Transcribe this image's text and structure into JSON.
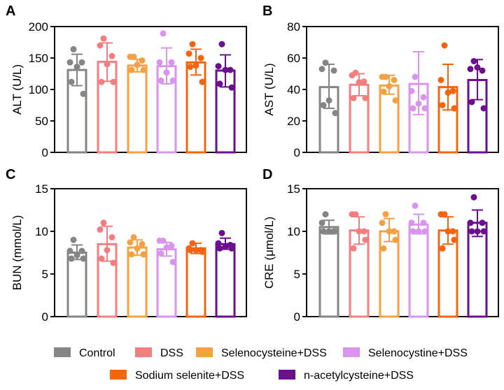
{
  "groups": [
    "Control",
    "DSS",
    "Selenocysteine+DSS",
    "Selenocystine+DSS",
    "Sodium selenite+DSS",
    "n-acetylcysteine+DSS"
  ],
  "colors": [
    "#858585",
    "#f27f7f",
    "#f5a043",
    "#d994ee",
    "#f56411",
    "#6c0f8f"
  ],
  "chart_data": [
    {
      "panel": "A",
      "type": "bar",
      "ylabel": "ALT (U/L)",
      "ylim": [
        0,
        200
      ],
      "yticks": [
        0,
        50,
        100,
        150,
        200
      ],
      "means": [
        131,
        144,
        138,
        137,
        143,
        130
      ],
      "err_upper": [
        156,
        174,
        148,
        166,
        164,
        155
      ],
      "err_lower": [
        106,
        113,
        128,
        109,
        123,
        104
      ],
      "points": [
        [
          164,
          143,
          143,
          136,
          112,
          93
        ],
        [
          181,
          170,
          153,
          140,
          112,
          112
        ],
        [
          152,
          152,
          146,
          139,
          131,
          131
        ],
        [
          189,
          143,
          143,
          127,
          114,
          114
        ],
        [
          172,
          157,
          150,
          138,
          136,
          112
        ],
        [
          172,
          137,
          131,
          131,
          109,
          103
        ]
      ]
    },
    {
      "panel": "B",
      "type": "bar",
      "ylabel": "AST (U/L)",
      "ylim": [
        0,
        80
      ],
      "yticks": [
        0,
        20,
        40,
        60,
        80
      ],
      "means": [
        41.5,
        43,
        42.5,
        43.5,
        41.5,
        46
      ],
      "err_upper": [
        56,
        50,
        49,
        64,
        56,
        59
      ],
      "err_lower": [
        28,
        36,
        37,
        24,
        27,
        33.5
      ],
      "points": [
        [
          57,
          53,
          52,
          33,
          30,
          25
        ],
        [
          50.6,
          49,
          45,
          44.6,
          34.5,
          34.5
        ],
        [
          48,
          48,
          46,
          42,
          38.6,
          33
        ],
        [
          48,
          39,
          35,
          31,
          28,
          28
        ],
        [
          68,
          46,
          39,
          38,
          30,
          28
        ],
        [
          58,
          53,
          52,
          54,
          32,
          28
        ]
      ]
    },
    {
      "panel": "C",
      "type": "bar",
      "ylabel": "BUN (mmol/L)",
      "ylim": [
        0,
        15
      ],
      "yticks": [
        0,
        5,
        10,
        15
      ],
      "means": [
        7.5,
        8.5,
        8.1,
        7.9,
        8.0,
        8.5
      ],
      "err_upper": [
        8.4,
        10.6,
        9.0,
        8.7,
        8.6,
        9.2
      ],
      "err_lower": [
        6.7,
        6.5,
        7.2,
        7.1,
        7.4,
        7.9
      ],
      "points": [
        [
          9.0,
          7.7,
          7.7,
          7.2,
          6.8,
          6.8
        ],
        [
          11.0,
          10.2,
          9.3,
          7.8,
          6.8,
          6.3
        ],
        [
          9.3,
          8.7,
          8.5,
          8.0,
          7.3,
          7.3
        ],
        [
          8.9,
          8.9,
          8.3,
          8.1,
          7.4,
          6.4
        ],
        [
          8.6,
          8.0,
          7.8,
          7.8,
          7.8,
          7.6
        ],
        [
          9.8,
          8.6,
          8.4,
          8.2,
          8.0,
          8.0
        ]
      ]
    },
    {
      "panel": "D",
      "type": "bar",
      "ylabel": "CRE (μmol/L)",
      "ylim": [
        0,
        15
      ],
      "yticks": [
        0,
        5,
        10,
        15
      ],
      "means": [
        10.5,
        10.1,
        10.0,
        10.8,
        10.1,
        11.0
      ],
      "err_upper": [
        11.3,
        11.7,
        11.5,
        12,
        11.7,
        12.5
      ],
      "err_lower": [
        9.7,
        8.5,
        8.8,
        9.7,
        8.5,
        9.4
      ],
      "points": [
        [
          12,
          11,
          10,
          10,
          10,
          10
        ],
        [
          12,
          12,
          10,
          10,
          8,
          9
        ],
        [
          12,
          11,
          10,
          10,
          8,
          9
        ],
        [
          13,
          11,
          11,
          10,
          10,
          10
        ],
        [
          12,
          12,
          10,
          10,
          8,
          9
        ],
        [
          14,
          11,
          11,
          10,
          10,
          10
        ]
      ]
    }
  ],
  "legend": {
    "placement": "bottom",
    "labels": [
      "Control",
      "DSS",
      "Selenocysteine+DSS",
      "Selenocystine+DSS",
      "Sodium selenite+DSS",
      "n-acetylcysteine+DSS"
    ]
  }
}
